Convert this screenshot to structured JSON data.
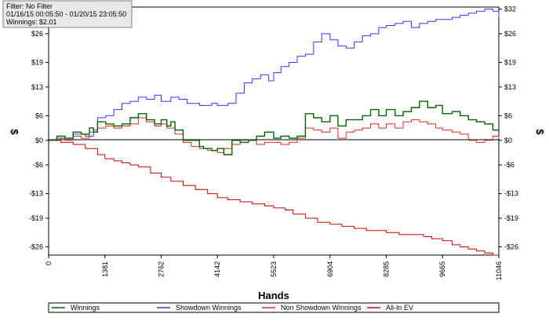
{
  "info_box": {
    "filter": "Filter: No Filter",
    "date_range": "01/16/15 00:05:50 - 01/20/15 23:05:50",
    "winnings": "Winnings: $2.01"
  },
  "chart_data": {
    "type": "line",
    "xlabel": "Hands",
    "ylabel_left": "$",
    "ylabel_right": "$",
    "xlim": [
      0,
      11046
    ],
    "ylim": [
      -28,
      32.5
    ],
    "x_ticks": [
      0,
      1381,
      2762,
      4142,
      5523,
      6904,
      8285,
      9665,
      11046
    ],
    "x_tick_labels": [
      "0",
      "1381",
      "2762",
      "4142",
      "5523",
      "6904",
      "8285",
      "9665",
      "11046"
    ],
    "y_ticks_left": [
      26,
      19,
      13,
      6,
      0,
      -6,
      -13,
      -19,
      -26
    ],
    "y_tick_labels_left": [
      "$26",
      "$19",
      "$13",
      "$6",
      "$0",
      "-$6",
      "-$13",
      "-$19",
      "-$26"
    ],
    "y_ticks_right": [
      32,
      26,
      19,
      13,
      6,
      0,
      -6,
      -13,
      -19,
      -26
    ],
    "y_tick_labels_right": [
      "$32",
      "$26",
      "$19",
      "$13",
      "$6",
      "$0",
      "-$6",
      "-$13",
      "-$19",
      "-$26"
    ],
    "zero_line": true,
    "grid": false,
    "legend_position": "bottom",
    "series": [
      {
        "name": "Winnings",
        "color": "#006400",
        "x": [
          0,
          200,
          400,
          600,
          800,
          1000,
          1100,
          1200,
          1400,
          1600,
          1800,
          2000,
          2200,
          2400,
          2600,
          2762,
          2900,
          3000,
          3100,
          3300,
          3500,
          3700,
          3800,
          4000,
          4142,
          4300,
          4500,
          4700,
          4900,
          5000,
          5100,
          5300,
          5500,
          5523,
          5700,
          5900,
          6100,
          6300,
          6500,
          6700,
          6904,
          7100,
          7300,
          7500,
          7700,
          7900,
          8100,
          8285,
          8500,
          8700,
          8900,
          9100,
          9300,
          9500,
          9665,
          9900,
          10100,
          10300,
          10500,
          10700,
          10900,
          11046
        ],
        "y": [
          0,
          1,
          0.5,
          2,
          1.5,
          3,
          2,
          4.5,
          4,
          3.5,
          4,
          5.5,
          6.5,
          5,
          4,
          5,
          3.5,
          4.5,
          2.5,
          0,
          0,
          -1.5,
          -2,
          -2.5,
          -2,
          -3.5,
          0,
          -0.5,
          0,
          0,
          1,
          2,
          2,
          0.5,
          1,
          0.5,
          1,
          6.5,
          5.5,
          4.5,
          6,
          3.5,
          5,
          5,
          6,
          7.5,
          6,
          7.5,
          6,
          7,
          8,
          9.5,
          8,
          8.5,
          6.5,
          7,
          6,
          5,
          4.5,
          4,
          2.5,
          2
        ]
      },
      {
        "name": "Showdown Winnings",
        "color": "#3333ff",
        "x": [
          0,
          300,
          600,
          900,
          1100,
          1200,
          1400,
          1600,
          1800,
          2000,
          2200,
          2400,
          2600,
          2762,
          3000,
          3200,
          3400,
          3700,
          4000,
          4142,
          4400,
          4600,
          4800,
          5000,
          5200,
          5400,
          5523,
          5700,
          5900,
          6100,
          6300,
          6500,
          6700,
          6904,
          7100,
          7300,
          7500,
          7700,
          7900,
          8100,
          8285,
          8500,
          8700,
          8900,
          9100,
          9300,
          9500,
          9665,
          9900,
          10100,
          10300,
          10500,
          10700,
          10900,
          11046
        ],
        "y": [
          0,
          0.5,
          1.5,
          1,
          2.5,
          5.5,
          6,
          7.5,
          9,
          9.5,
          10.5,
          10,
          11,
          9.5,
          10.5,
          10,
          9,
          8.5,
          9,
          8.5,
          9,
          11.5,
          14,
          15,
          16,
          14.5,
          16.5,
          18,
          19,
          20.5,
          21,
          24,
          26,
          24.5,
          23,
          22.5,
          24,
          25.5,
          26,
          27.5,
          28,
          28.5,
          29,
          27.5,
          28.5,
          29,
          29.5,
          29.5,
          30,
          30.5,
          31,
          31.5,
          32,
          31.5,
          30
        ]
      },
      {
        "name": "Non Showdown Winnings",
        "color": "#e0281e",
        "x": [
          0,
          200,
          400,
          600,
          800,
          1000,
          1200,
          1400,
          1600,
          1800,
          2000,
          2200,
          2400,
          2600,
          2762,
          2900,
          3100,
          3300,
          3500,
          3700,
          3900,
          4142,
          4300,
          4500,
          4700,
          4900,
          5100,
          5300,
          5523,
          5700,
          5900,
          6100,
          6300,
          6500,
          6700,
          6904,
          7100,
          7300,
          7500,
          7700,
          7900,
          8100,
          8285,
          8500,
          8700,
          8900,
          9100,
          9300,
          9500,
          9665,
          9900,
          10100,
          10300,
          10500,
          10700,
          10900,
          11046
        ],
        "y": [
          0,
          0.5,
          0,
          1,
          0.5,
          2,
          3,
          3.5,
          3,
          3.5,
          4,
          5.5,
          4.5,
          3.5,
          4,
          3,
          1.5,
          -0.5,
          -1.5,
          -2,
          -2.5,
          -3,
          -2,
          -1,
          0,
          0,
          -1,
          -0.5,
          -0.5,
          -1,
          -0.5,
          0.5,
          3,
          2.5,
          2,
          3,
          0.5,
          2,
          2.5,
          3,
          4,
          3,
          4,
          3,
          4.5,
          5,
          4.5,
          4,
          3,
          2.5,
          2,
          1.5,
          0,
          -0.5,
          0,
          1,
          0.5
        ]
      },
      {
        "name": "All-In EV",
        "color": "#cc0000",
        "x": [
          0,
          300,
          600,
          900,
          1200,
          1381,
          1600,
          1800,
          2000,
          2200,
          2500,
          2762,
          3000,
          3300,
          3600,
          3900,
          4142,
          4400,
          4700,
          5000,
          5300,
          5523,
          5800,
          6000,
          6300,
          6600,
          6904,
          7200,
          7500,
          7800,
          8000,
          8285,
          8600,
          8900,
          9200,
          9400,
          9665,
          9900,
          10100,
          10300,
          10500,
          10700,
          10900,
          11046
        ],
        "y": [
          0,
          -0.5,
          -1,
          -2,
          -3.5,
          -4.5,
          -5,
          -5.5,
          -6,
          -6.5,
          -8,
          -9,
          -10,
          -11,
          -12,
          -13,
          -14,
          -14.5,
          -15,
          -15.5,
          -16,
          -16.5,
          -17,
          -18,
          -19,
          -20,
          -20.5,
          -21,
          -21.5,
          -22,
          -22,
          -22.5,
          -23,
          -23,
          -23.5,
          -24,
          -24.5,
          -25.5,
          -26,
          -26.5,
          -27,
          -27.5,
          -28,
          -28
        ]
      }
    ]
  }
}
